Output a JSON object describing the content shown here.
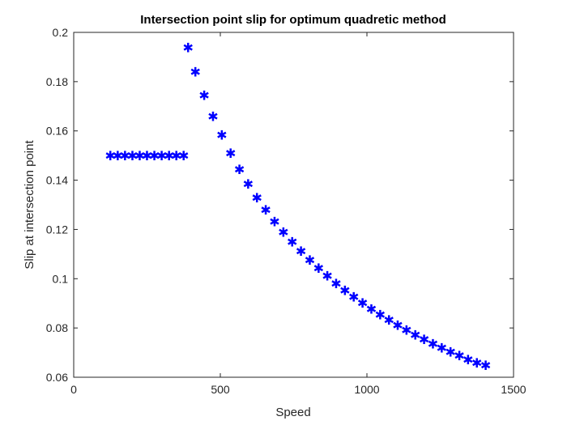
{
  "chart_data": {
    "type": "scatter",
    "title": "Intersection point slip for optimum quadretic method",
    "xlabel": "Speed",
    "ylabel": "Slip at intersection point",
    "xlim": [
      0,
      1500
    ],
    "ylim": [
      0.06,
      0.2
    ],
    "xticks": [
      0,
      500,
      1000,
      1500
    ],
    "yticks": [
      0.06,
      0.08,
      0.1,
      0.12,
      0.14,
      0.16,
      0.18,
      0.2
    ],
    "xtick_labels": [
      "0",
      "500",
      "1000",
      "1500"
    ],
    "ytick_labels": [
      "0.06",
      "0.08",
      "0.1",
      "0.12",
      "0.14",
      "0.16",
      "0.18",
      "0.2"
    ],
    "grid": false,
    "marker": "asterisk",
    "marker_color": "#0000ff",
    "series": [
      {
        "points": [
          [
            125,
            0.15
          ],
          [
            150,
            0.15
          ],
          [
            175,
            0.15
          ],
          [
            200,
            0.15
          ],
          [
            225,
            0.15
          ],
          [
            250,
            0.15
          ],
          [
            275,
            0.15
          ],
          [
            300,
            0.15
          ],
          [
            325,
            0.15
          ],
          [
            350,
            0.15
          ],
          [
            375,
            0.15
          ],
          [
            390,
            0.194
          ],
          [
            415,
            0.184
          ],
          [
            445,
            0.1745
          ],
          [
            475,
            0.166
          ],
          [
            505,
            0.1585
          ],
          [
            535,
            0.151
          ],
          [
            565,
            0.1445
          ],
          [
            595,
            0.1385
          ],
          [
            625,
            0.133
          ],
          [
            655,
            0.128
          ],
          [
            685,
            0.1233
          ],
          [
            715,
            0.119
          ],
          [
            745,
            0.115
          ],
          [
            775,
            0.1112
          ],
          [
            805,
            0.1077
          ],
          [
            835,
            0.1043
          ],
          [
            865,
            0.1012
          ],
          [
            895,
            0.0982
          ],
          [
            925,
            0.0954
          ],
          [
            955,
            0.0927
          ],
          [
            985,
            0.0902
          ],
          [
            1015,
            0.0878
          ],
          [
            1045,
            0.0855
          ],
          [
            1075,
            0.0833
          ],
          [
            1105,
            0.0812
          ],
          [
            1135,
            0.0792
          ],
          [
            1165,
            0.0773
          ],
          [
            1195,
            0.0755
          ],
          [
            1225,
            0.0737
          ],
          [
            1255,
            0.072
          ],
          [
            1285,
            0.0703
          ],
          [
            1315,
            0.0688
          ],
          [
            1345,
            0.0673
          ],
          [
            1375,
            0.0659
          ],
          [
            1405,
            0.065
          ]
        ]
      }
    ]
  }
}
